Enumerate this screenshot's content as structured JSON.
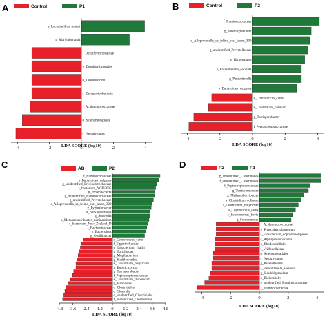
{
  "colors": {
    "red": "#e8202a",
    "green": "#1f7a3a",
    "axis": "#222222"
  },
  "chart_data": [
    {
      "panel": "A",
      "type": "bar",
      "orientation": "horizontal",
      "legend": [
        "Control",
        "P1"
      ],
      "xlabel": "LDA SCORE (log10)",
      "xlim": [
        -4.4,
        4.4
      ],
      "xticks": [
        -4,
        -2,
        0,
        2,
        4
      ],
      "items": [
        {
          "label": "s_Lactobacillus_reuteri",
          "value": 3.95,
          "group": "P1"
        },
        {
          "label": "g_Marvinbryantia",
          "value": 3.0,
          "group": "P1"
        },
        {
          "label": "f_Desulfovibrionaceae",
          "value": -3.1,
          "group": "Control"
        },
        {
          "label": "g_Desulfovibrionales",
          "value": -3.1,
          "group": "Control"
        },
        {
          "label": "o_Desulfovibrio",
          "value": -3.1,
          "group": "Control"
        },
        {
          "label": "c_Deltaproteobacteria",
          "value": -3.1,
          "group": "Control"
        },
        {
          "label": "f_Acidaminococcaceae",
          "value": -3.2,
          "group": "Control"
        },
        {
          "label": "o_Selenomonadales",
          "value": -3.7,
          "group": "Control"
        },
        {
          "label": "c_Negativicutes",
          "value": -4.1,
          "group": "Control"
        }
      ]
    },
    {
      "panel": "B",
      "type": "bar",
      "orientation": "horizontal",
      "legend": [
        "Control",
        "P2"
      ],
      "xlabel": "LDA SCORE (log10)",
      "xlim": [
        -4.4,
        4.4
      ],
      "xticks": [
        -4,
        -2,
        0,
        2,
        4
      ],
      "items": [
        {
          "label": "f_Ruminococcaceae",
          "value": 4.1,
          "group": "P2"
        },
        {
          "label": "g_Subdoligranulum",
          "value": 3.6,
          "group": "P2"
        },
        {
          "label": "s_Alloprevotella_sp_feline_oral_taxon_309",
          "value": 3.5,
          "group": "P2"
        },
        {
          "label": "g_unidentified_Prevotellaceae",
          "value": 3.4,
          "group": "P2"
        },
        {
          "label": "o_Rickettsiales",
          "value": 3.2,
          "group": "P2"
        },
        {
          "label": "s_Parasutterella_secunda",
          "value": 3.0,
          "group": "P2"
        },
        {
          "label": "g_Parasutterella",
          "value": 3.0,
          "group": "P2"
        },
        {
          "label": "s_Bacteroides_vulgatus",
          "value": 2.7,
          "group": "P2"
        },
        {
          "label": "s_Coprococcus_catus",
          "value": -2.5,
          "group": "Control"
        },
        {
          "label": "s_Clostridium_colinum",
          "value": -2.7,
          "group": "Control"
        },
        {
          "label": "g_Terrisporobacter",
          "value": -3.6,
          "group": "Control"
        },
        {
          "label": "f_Peptostreptococcaceae",
          "value": -3.9,
          "group": "Control"
        }
      ]
    },
    {
      "panel": "C",
      "type": "bar",
      "orientation": "horizontal",
      "legend": [
        "AB",
        "P2"
      ],
      "xlabel": "LDA SCORE (log10)",
      "xlim": [
        -4.8,
        4.8
      ],
      "xticks": [
        -4.8,
        -3.6,
        -2.4,
        -1.2,
        0,
        1.2,
        2.4,
        3.6,
        4.8
      ],
      "items": [
        {
          "label": "f_Ruminococcaceae",
          "value": 4.3,
          "group": "P2"
        },
        {
          "label": "s_Bacteroides_vulgatus",
          "value": 4.2,
          "group": "P2"
        },
        {
          "label": "g_unidentified_Erysipelotrichaceae",
          "value": 4.0,
          "group": "P2"
        },
        {
          "label": "s_bacterium_YGD2005",
          "value": 3.9,
          "group": "P2"
        },
        {
          "label": "p_Proteobacteria",
          "value": 3.8,
          "group": "P2"
        },
        {
          "label": "g_unidentified_Ruminococcaceae",
          "value": 3.8,
          "group": "P2"
        },
        {
          "label": "g_unidentified_Prevotellaceae",
          "value": 3.7,
          "group": "P2"
        },
        {
          "label": "s_Alloprevotella_sp_feline_oral_taxon_309",
          "value": 3.6,
          "group": "P2"
        },
        {
          "label": "g_Pygmaiobacter",
          "value": 3.5,
          "group": "P2"
        },
        {
          "label": "o_Burkholderiales",
          "value": 3.4,
          "group": "P2"
        },
        {
          "label": "g_Sutterella",
          "value": 3.4,
          "group": "P2"
        },
        {
          "label": "s_Methanobrevibacter_ruminantium",
          "value": 3.3,
          "group": "P2"
        },
        {
          "label": "s_bacterium_New_Zealand_D",
          "value": 3.2,
          "group": "P2"
        },
        {
          "label": "f_Bacteroidaceae",
          "value": 3.1,
          "group": "P2"
        },
        {
          "label": "g_Bacteroides",
          "value": 3.0,
          "group": "P2"
        },
        {
          "label": "g_Oscillibacter",
          "value": 2.9,
          "group": "P2"
        },
        {
          "label": "s_Coprococcus_catus",
          "value": -2.6,
          "group": "AB"
        },
        {
          "label": "f_Eggerthellaceae",
          "value": -2.8,
          "group": "AB"
        },
        {
          "label": "s_Eubacterium__hallii",
          "value": -2.9,
          "group": "AB"
        },
        {
          "label": "g_Turicibacter",
          "value": -3.0,
          "group": "AB"
        },
        {
          "label": "g_Mogibacterium",
          "value": -3.1,
          "group": "AB"
        },
        {
          "label": "g_Shuttleworthia",
          "value": -3.2,
          "group": "AB"
        },
        {
          "label": "s_Clostridium_butyricum",
          "value": -3.3,
          "group": "AB"
        },
        {
          "label": "g_Butyricicoccus",
          "value": -3.3,
          "group": "AB"
        },
        {
          "label": "g_Terrisporobacter",
          "value": -3.5,
          "group": "AB"
        },
        {
          "label": "f_Peptostreptococcaceae",
          "value": -3.6,
          "group": "AB"
        },
        {
          "label": "s_Clostridium_disporicum",
          "value": -3.8,
          "group": "AB"
        },
        {
          "label": "p_Firmicutes",
          "value": -4.0,
          "group": "AB"
        },
        {
          "label": "o_Clostridiales",
          "value": -4.2,
          "group": "AB"
        },
        {
          "label": "c_Clostridia",
          "value": -4.3,
          "group": "AB"
        },
        {
          "label": "o_unidentified_Clostridiales",
          "value": -4.4,
          "group": "AB"
        },
        {
          "label": "f_unidentified_Clostridiales",
          "value": -4.5,
          "group": "AB"
        }
      ]
    },
    {
      "panel": "D",
      "type": "bar",
      "orientation": "horizontal",
      "legend": [
        "P2",
        "P1"
      ],
      "xlabel": "LDA SCORE (log10)",
      "xlim": [
        -4.5,
        4.5
      ],
      "xticks": [
        -4,
        -2,
        0,
        2,
        4
      ],
      "items": [
        {
          "label": "g_unidentified_Clostridiales",
          "value": 4.3,
          "group": "P1"
        },
        {
          "label": "f_unidentified_Clostridiales",
          "value": 4.3,
          "group": "P1"
        },
        {
          "label": "f_Peptostreptococcaceae",
          "value": 3.5,
          "group": "P1"
        },
        {
          "label": "g_Terrisporobacter",
          "value": 3.4,
          "group": "P1"
        },
        {
          "label": "g_Methanobrevibacter",
          "value": 3.1,
          "group": "P1"
        },
        {
          "label": "s_Clostridium_colinum",
          "value": 2.9,
          "group": "P1"
        },
        {
          "label": "s_Clostridium_butyricum",
          "value": 2.7,
          "group": "P1"
        },
        {
          "label": "s_Coprococcus_catus",
          "value": 2.5,
          "group": "P1"
        },
        {
          "label": "s_Selenomonas_bovis",
          "value": 2.3,
          "group": "P1"
        },
        {
          "label": "g_Selenomonas",
          "value": 2.2,
          "group": "P1"
        },
        {
          "label": "f_Acidaminococcaceae",
          "value": -3.0,
          "group": "P2"
        },
        {
          "label": "g_Phascolarctobacterium",
          "value": -3.0,
          "group": "P2"
        },
        {
          "label": "s_Eubacterium_coprostanoligenes",
          "value": -3.0,
          "group": "P2"
        },
        {
          "label": "c_Alphaproteobacteria",
          "value": -3.1,
          "group": "P2"
        },
        {
          "label": "o_Rhodospirillales",
          "value": -3.1,
          "group": "P2"
        },
        {
          "label": "f_Veillonellaceae",
          "value": -3.1,
          "group": "P2"
        },
        {
          "label": "o_Selenomonadales",
          "value": -3.2,
          "group": "P2"
        },
        {
          "label": "c_Negativicutes",
          "value": -3.2,
          "group": "P2"
        },
        {
          "label": "g_Parasutterella",
          "value": -3.3,
          "group": "P2"
        },
        {
          "label": "s_Parasutterella_secunda",
          "value": -3.3,
          "group": "P2"
        },
        {
          "label": "g_Subdoligranulum",
          "value": -3.4,
          "group": "P2"
        },
        {
          "label": "o_Rickettsiales",
          "value": -3.5,
          "group": "P2"
        },
        {
          "label": "g_unidentified_Ruminococcaceae",
          "value": -3.8,
          "group": "P2"
        },
        {
          "label": "f_Ruminococcaceae",
          "value": -4.3,
          "group": "P2"
        }
      ]
    }
  ]
}
